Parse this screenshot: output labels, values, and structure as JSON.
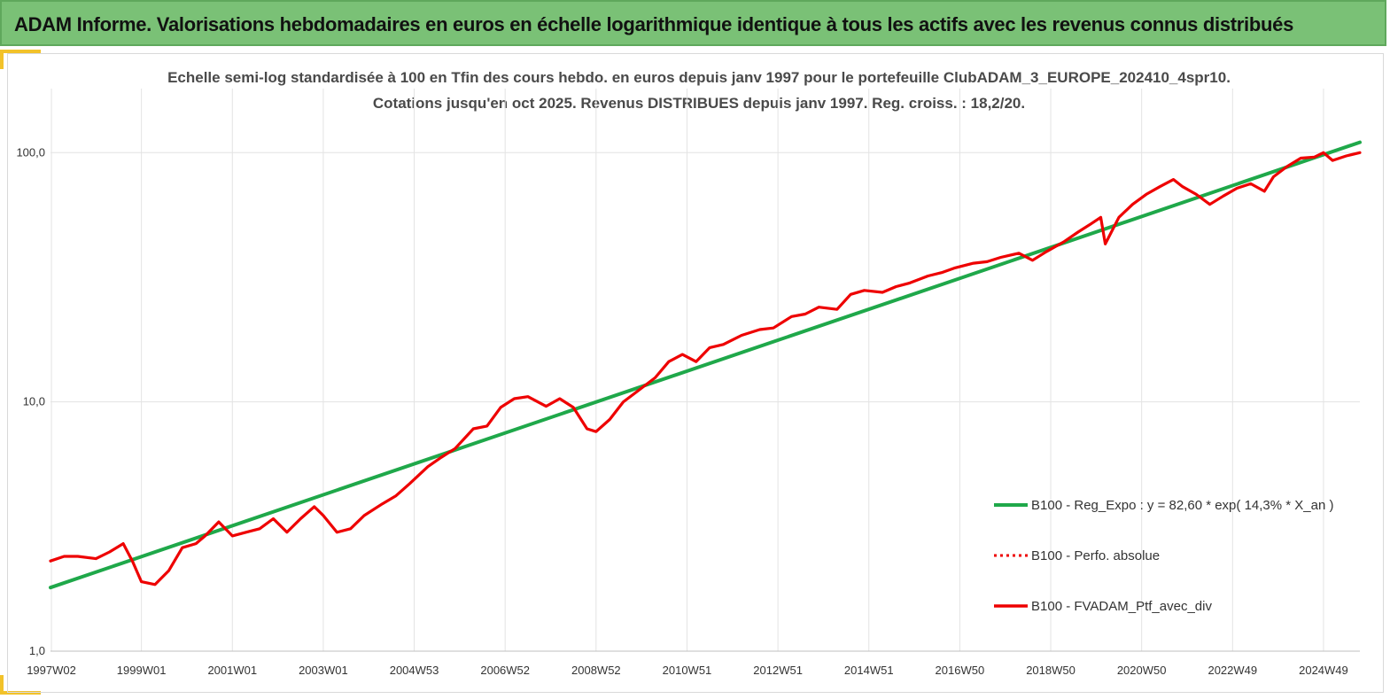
{
  "header": {
    "title": "ADAM Informe. Valorisations hebdomadaires en euros en échelle logarithmique identique à tous les actifs avec les revenus connus distribués"
  },
  "colors": {
    "header_bg": "#7ac176",
    "accent_gold": "#f2c22a",
    "regression_line": "#1fa84a",
    "portfolio_line": "#ee0000",
    "gridline": "#e3e3e3"
  },
  "chart_data": {
    "type": "line",
    "title_lines": [
      "Echelle semi-log standardisée à 100 en Tfin des cours hebdo.  en euros depuis janv 1997 pour le portefeuille ClubADAM_3_EUROPE_202410_4spr10.",
      "Cotations jusqu'en oct 2025. Revenus DISTRIBUES depuis janv 1997. Reg. croiss. : 18,2/20."
    ],
    "y_scale": "log",
    "ylim": [
      1,
      120
    ],
    "y_ticks": [
      {
        "value": 1,
        "label": "1,0"
      },
      {
        "value": 10,
        "label": "10,0"
      },
      {
        "value": 100,
        "label": "100,0"
      }
    ],
    "x_range": [
      1997.0,
      2025.8
    ],
    "x_ticks": [
      {
        "value": 1997.02,
        "label": "1997W02"
      },
      {
        "value": 1999.0,
        "label": "1999W01"
      },
      {
        "value": 2001.0,
        "label": "2001W01"
      },
      {
        "value": 2003.0,
        "label": "2003W01"
      },
      {
        "value": 2005.0,
        "label": "2004W53"
      },
      {
        "value": 2007.0,
        "label": "2006W52"
      },
      {
        "value": 2009.0,
        "label": "2008W52"
      },
      {
        "value": 2011.0,
        "label": "2010W51"
      },
      {
        "value": 2013.0,
        "label": "2012W51"
      },
      {
        "value": 2015.0,
        "label": "2014W51"
      },
      {
        "value": 2017.0,
        "label": "2016W50"
      },
      {
        "value": 2019.0,
        "label": "2018W50"
      },
      {
        "value": 2021.0,
        "label": "2020W50"
      },
      {
        "value": 2023.0,
        "label": "2022W49"
      },
      {
        "value": 2025.0,
        "label": "2024W49"
      }
    ],
    "grid": true,
    "legend_position": "right",
    "series": [
      {
        "name": "B100 - Reg_Expo : y = 82,60 * exp( 14,3% *  X_an )",
        "style": "solid-thick",
        "color": "#1fa84a",
        "x": [
          1997.0,
          2025.8
        ],
        "y": [
          1.8,
          110
        ]
      },
      {
        "name": "B100 - Perfo. absolue",
        "style": "dotted",
        "color": "#ee0000",
        "x": [],
        "y": []
      },
      {
        "name": "B100 - FVADAM_Ptf_avec_div",
        "style": "solid",
        "color": "#ee0000",
        "x": [
          1997.0,
          1997.3,
          1997.6,
          1998.0,
          1998.3,
          1998.6,
          1998.8,
          1999.0,
          1999.3,
          1999.6,
          1999.9,
          2000.2,
          2000.4,
          2000.7,
          2001.0,
          2001.3,
          2001.6,
          2001.9,
          2002.2,
          2002.5,
          2002.8,
          2003.0,
          2003.3,
          2003.6,
          2003.9,
          2004.3,
          2004.6,
          2004.9,
          2005.3,
          2005.6,
          2005.9,
          2006.3,
          2006.6,
          2006.9,
          2007.2,
          2007.5,
          2007.9,
          2008.2,
          2008.5,
          2008.8,
          2009.0,
          2009.3,
          2009.6,
          2009.9,
          2010.3,
          2010.6,
          2010.9,
          2011.2,
          2011.5,
          2011.8,
          2012.2,
          2012.6,
          2012.9,
          2013.3,
          2013.6,
          2013.9,
          2014.3,
          2014.6,
          2014.9,
          2015.3,
          2015.6,
          2015.9,
          2016.3,
          2016.6,
          2016.9,
          2017.3,
          2017.6,
          2017.9,
          2018.3,
          2018.6,
          2018.9,
          2019.3,
          2019.6,
          2019.9,
          2020.1,
          2020.2,
          2020.5,
          2020.8,
          2021.1,
          2021.4,
          2021.7,
          2021.9,
          2022.2,
          2022.5,
          2022.8,
          2023.1,
          2023.4,
          2023.7,
          2023.9,
          2024.2,
          2024.5,
          2024.8,
          2025.0,
          2025.2,
          2025.5,
          2025.8
        ],
        "y": [
          2.3,
          2.4,
          2.4,
          2.35,
          2.5,
          2.7,
          2.3,
          1.9,
          1.85,
          2.1,
          2.6,
          2.7,
          2.9,
          3.3,
          2.9,
          3.0,
          3.1,
          3.4,
          3.0,
          3.4,
          3.8,
          3.5,
          3.0,
          3.1,
          3.5,
          3.9,
          4.2,
          4.7,
          5.5,
          6.0,
          6.5,
          7.8,
          8.0,
          9.5,
          10.3,
          10.5,
          9.6,
          10.3,
          9.5,
          7.8,
          7.6,
          8.5,
          10.0,
          11.0,
          12.5,
          14.5,
          15.5,
          14.5,
          16.5,
          17.0,
          18.5,
          19.5,
          19.8,
          22.0,
          22.5,
          24.0,
          23.5,
          27.0,
          28.0,
          27.5,
          29.0,
          30.0,
          32.0,
          33.0,
          34.5,
          36.0,
          36.5,
          38.0,
          39.5,
          37.0,
          40.0,
          44.0,
          48.0,
          52.0,
          55.0,
          43.0,
          55.0,
          62.0,
          68.0,
          73.0,
          78.0,
          73.0,
          68.0,
          62.0,
          67.0,
          72.0,
          75.0,
          70.0,
          80.0,
          88.0,
          95.0,
          96.0,
          100.0,
          93.0,
          97.0,
          100.0
        ]
      }
    ]
  }
}
